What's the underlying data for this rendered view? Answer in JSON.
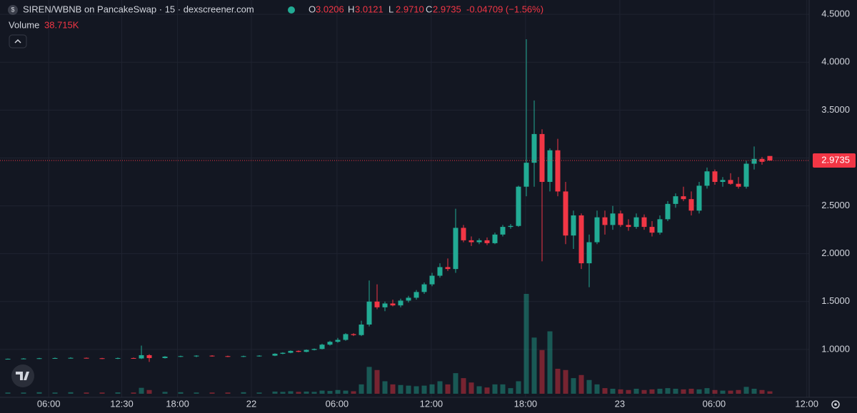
{
  "header": {
    "symbol": "SIREN/WBNB on PancakeSwap · 15 · dexscreener.com",
    "o_label": "O",
    "open": "3.0206",
    "h_label": "H",
    "high": "3.0121",
    "l_label": "L",
    "low": "2.9710",
    "c_label": "C",
    "close": "2.9735",
    "change": "-0.04709 (−1.56%)",
    "volume_label": "Volume",
    "volume": "38.715K"
  },
  "chart_data": {
    "type": "candlestick",
    "x": [
      1,
      3,
      5,
      7,
      9,
      11,
      13,
      15,
      17,
      18,
      19,
      21,
      23,
      25,
      27,
      29,
      31,
      33,
      35,
      36,
      37,
      38,
      39,
      40,
      41,
      42,
      43,
      44,
      45,
      46,
      47,
      48,
      49,
      50,
      51,
      52,
      53,
      54,
      55,
      56,
      57,
      58,
      59,
      60,
      61,
      62,
      63,
      64,
      65,
      66,
      67,
      68,
      69,
      70,
      71,
      72,
      73,
      74,
      75,
      76,
      77,
      78,
      79,
      80,
      81,
      82,
      83,
      84,
      85,
      86,
      87,
      88,
      89,
      90,
      91,
      92,
      93,
      94,
      95,
      96,
      97,
      98
    ],
    "open": [
      0.9,
      0.902,
      0.905,
      0.908,
      0.91,
      0.912,
      0.908,
      0.905,
      0.91,
      0.906,
      0.94,
      0.91,
      0.925,
      0.93,
      0.935,
      0.93,
      0.925,
      0.93,
      0.935,
      0.955,
      0.965,
      0.985,
      0.975,
      0.995,
      1.005,
      1.05,
      1.08,
      1.1,
      1.16,
      1.15,
      1.26,
      1.5,
      1.44,
      1.48,
      1.46,
      1.51,
      1.54,
      1.6,
      1.68,
      1.77,
      1.86,
      1.84,
      2.27,
      2.14,
      2.12,
      2.14,
      2.11,
      2.2,
      2.28,
      2.29,
      2.7,
      2.95,
      3.25,
      2.75,
      3.08,
      2.65,
      2.19,
      2.4,
      1.9,
      2.12,
      2.38,
      2.3,
      2.42,
      2.3,
      2.28,
      2.38,
      2.28,
      2.22,
      2.36,
      2.52,
      2.6,
      2.57,
      2.45,
      2.71,
      2.86,
      2.75,
      2.77,
      2.73,
      2.7,
      2.94,
      2.99,
      3.0206
    ],
    "high": [
      0.905,
      0.91,
      0.912,
      0.915,
      0.918,
      0.915,
      0.912,
      0.915,
      0.915,
      1.04,
      0.95,
      0.93,
      0.935,
      0.94,
      0.94,
      0.935,
      0.935,
      0.94,
      0.96,
      0.97,
      0.99,
      0.99,
      1.0,
      1.01,
      1.06,
      1.09,
      1.12,
      1.17,
      1.17,
      1.3,
      1.72,
      1.68,
      1.5,
      1.52,
      1.53,
      1.56,
      1.62,
      1.7,
      1.8,
      1.9,
      1.95,
      2.47,
      2.3,
      2.18,
      2.16,
      2.17,
      2.22,
      2.3,
      2.31,
      2.71,
      4.24,
      3.6,
      3.3,
      3.1,
      3.2,
      2.75,
      2.45,
      2.42,
      2.2,
      2.45,
      2.45,
      2.5,
      2.45,
      2.36,
      2.42,
      2.41,
      2.34,
      2.4,
      2.55,
      2.63,
      2.7,
      2.65,
      2.75,
      2.9,
      2.88,
      2.8,
      2.84,
      2.8,
      2.97,
      3.12,
      3.01,
      3.0121
    ],
    "low": [
      0.895,
      0.898,
      0.9,
      0.903,
      0.905,
      0.905,
      0.9,
      0.9,
      0.903,
      0.9,
      0.87,
      0.905,
      0.92,
      0.92,
      0.925,
      0.92,
      0.92,
      0.925,
      0.93,
      0.95,
      0.96,
      0.97,
      0.97,
      0.99,
      1.0,
      1.04,
      1.07,
      1.09,
      1.14,
      1.14,
      1.24,
      1.42,
      1.4,
      1.45,
      1.44,
      1.49,
      1.52,
      1.58,
      1.66,
      1.75,
      1.82,
      1.8,
      2.12,
      2.08,
      2.1,
      2.09,
      2.1,
      2.18,
      2.26,
      2.28,
      2.6,
      2.7,
      1.92,
      2.65,
      2.6,
      2.1,
      2.05,
      1.84,
      1.65,
      2.1,
      2.2,
      2.25,
      2.28,
      2.24,
      2.26,
      2.25,
      2.18,
      2.2,
      2.34,
      2.48,
      2.55,
      2.4,
      2.42,
      2.68,
      2.72,
      2.7,
      2.72,
      2.68,
      2.68,
      2.88,
      2.93,
      2.971
    ],
    "close": [
      0.902,
      0.905,
      0.908,
      0.91,
      0.912,
      0.908,
      0.905,
      0.91,
      0.906,
      0.94,
      0.91,
      0.925,
      0.93,
      0.935,
      0.93,
      0.925,
      0.93,
      0.935,
      0.955,
      0.965,
      0.985,
      0.975,
      0.995,
      1.005,
      1.05,
      1.08,
      1.1,
      1.16,
      1.15,
      1.26,
      1.5,
      1.44,
      1.48,
      1.46,
      1.51,
      1.54,
      1.6,
      1.68,
      1.77,
      1.86,
      1.84,
      2.27,
      2.14,
      2.12,
      2.14,
      2.11,
      2.2,
      2.28,
      2.29,
      2.7,
      2.95,
      3.25,
      2.75,
      3.08,
      2.65,
      2.19,
      2.4,
      1.9,
      2.12,
      2.38,
      2.3,
      2.42,
      2.3,
      2.28,
      2.38,
      2.28,
      2.22,
      2.36,
      2.52,
      2.6,
      2.57,
      2.45,
      2.71,
      2.86,
      2.75,
      2.77,
      2.73,
      2.7,
      2.94,
      2.99,
      2.96,
      2.9735
    ],
    "volume": [
      20000,
      20000,
      25000,
      20000,
      25000,
      20000,
      20000,
      22000,
      20000,
      95000,
      60000,
      30000,
      25000,
      20000,
      20000,
      20000,
      25000,
      20000,
      35000,
      30000,
      40000,
      30000,
      35000,
      30000,
      50000,
      45000,
      60000,
      50000,
      40000,
      150000,
      430000,
      380000,
      200000,
      150000,
      140000,
      130000,
      120000,
      130000,
      150000,
      200000,
      150000,
      330000,
      250000,
      180000,
      120000,
      100000,
      150000,
      150000,
      90000,
      200000,
      1600000,
      900000,
      700000,
      1000000,
      400000,
      380000,
      250000,
      300000,
      220000,
      150000,
      90000,
      80000,
      70000,
      60000,
      80000,
      60000,
      70000,
      80000,
      90000,
      80000,
      70000,
      80000,
      70000,
      90000,
      60000,
      50000,
      50000,
      60000,
      110000,
      80000,
      60000,
      38715
    ],
    "up_color": "#22ab94",
    "down_color": "#f23645",
    "xlim": [
      0,
      103
    ],
    "xticks": [
      {
        "value": 6.2,
        "label": "06:00"
      },
      {
        "value": 15.5,
        "label": "12:30"
      },
      {
        "value": 22.6,
        "label": "18:00"
      },
      {
        "value": 32,
        "label": "22"
      },
      {
        "value": 42.9,
        "label": "06:00"
      },
      {
        "value": 54.9,
        "label": "12:00"
      },
      {
        "value": 66.9,
        "label": "18:00"
      },
      {
        "value": 78.9,
        "label": "23"
      },
      {
        "value": 90.9,
        "label": "06:00"
      },
      {
        "value": 102.7,
        "label": "12:00"
      }
    ],
    "ylim": [
      0.5,
      4.65
    ],
    "yticks": [
      {
        "value": 1,
        "label": "1.0000"
      },
      {
        "value": 1.5,
        "label": "1.5000"
      },
      {
        "value": 2,
        "label": "2.0000"
      },
      {
        "value": 2.5,
        "label": "2.5000"
      },
      {
        "value": 3,
        "label": "3.0000"
      },
      {
        "value": 3.5,
        "label": "3.5000"
      },
      {
        "value": 4,
        "label": "4.0000"
      },
      {
        "value": 4.5,
        "label": "4.5000"
      }
    ],
    "grid": true
  }
}
